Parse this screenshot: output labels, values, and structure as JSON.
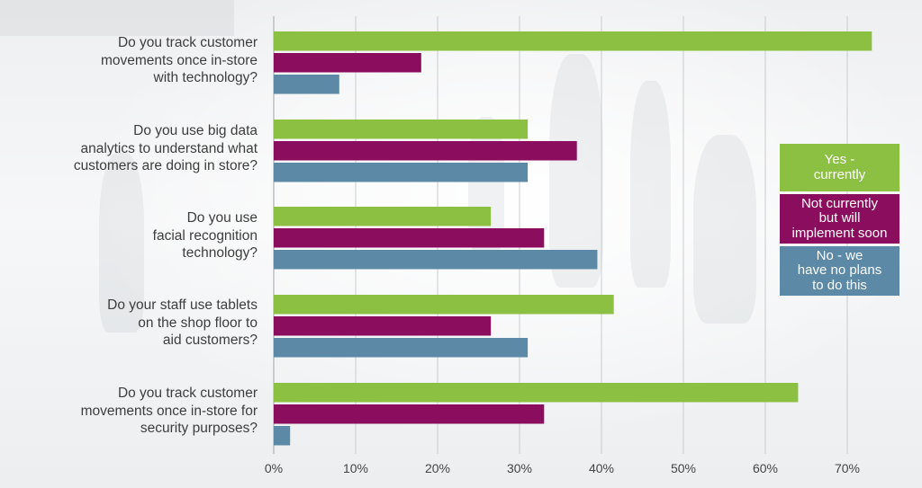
{
  "chart_data": {
    "type": "bar",
    "orientation": "horizontal",
    "categories": [
      "Do you track customer\nmovements once in-store\nwith technology?",
      "Do you use big data\nanalytics to understand what\ncustomers are doing in store?",
      "Do you use\nfacial recognition\ntechnology?",
      "Do your staff use tablets\non the shop floor to\naid customers?",
      "Do you track customer\nmovements once in-store for\nsecurity purposes?"
    ],
    "series": [
      {
        "name": "Yes -\ncurrently",
        "color": "#8cc043",
        "values": [
          73,
          31,
          26.5,
          41.5,
          64
        ]
      },
      {
        "name": "Not currently\nbut will\nimplement soon",
        "color": "#8b0d5e",
        "values": [
          18,
          37,
          33,
          26.5,
          33
        ]
      },
      {
        "name": "No - we\nhave no plans\nto do this",
        "color": "#5b89a6",
        "values": [
          8,
          31,
          39.5,
          31,
          2
        ]
      }
    ],
    "x_ticks": [
      "0%",
      "10%",
      "20%",
      "30%",
      "40%",
      "50%",
      "60%",
      "70%"
    ],
    "xlim": [
      0,
      80
    ],
    "grid": true,
    "legend_position": "right"
  }
}
